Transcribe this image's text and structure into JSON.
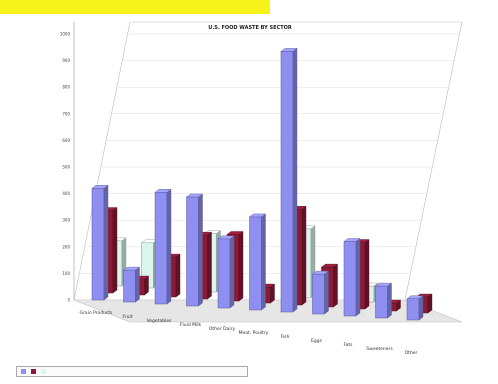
{
  "chart_data": {
    "type": "bar",
    "style": "3d-clustered-column",
    "title": "U.S. FOOD WASTE BY SECTOR",
    "ylim": [
      0,
      1000
    ],
    "y_ticks": [
      0,
      100,
      200,
      300,
      400,
      500,
      600,
      700,
      800,
      900,
      1000
    ],
    "grid": true,
    "legend_position": "bottom-left",
    "categories": [
      "Grain Products",
      "Fruit",
      "Vegetables",
      "Fluid Milk",
      "Other Dairy",
      "Meat, Poultry",
      "Fish",
      "Eggs",
      "Fats",
      "Sweeteners",
      "Other"
    ],
    "series": [
      {
        "name": "",
        "color": "#8f8ff2",
        "values": [
          420,
          120,
          420,
          410,
          260,
          350,
          980,
          150,
          280,
          120,
          80
        ]
      },
      {
        "name": "",
        "color": "#8b1a36",
        "values": [
          310,
          60,
          150,
          240,
          250,
          60,
          360,
          150,
          250,
          30,
          60
        ]
      },
      {
        "name": "",
        "color": "#d9f5ec",
        "values": [
          170,
          170,
          0,
          220,
          0,
          0,
          260,
          0,
          60,
          0,
          0
        ]
      }
    ]
  }
}
